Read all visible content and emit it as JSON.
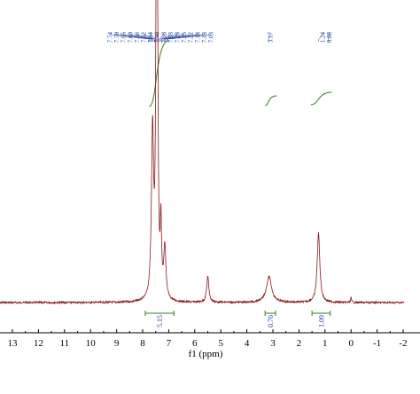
{
  "chart_data": {
    "type": "line",
    "xlabel": "f1 (ppm)",
    "xlim": [
      13.5,
      -2
    ],
    "x_reversed": true,
    "ticks": [
      "13",
      "12",
      "11",
      "10",
      "9",
      "8",
      "7",
      "6",
      "5",
      "4",
      "3",
      "2",
      "1",
      "0",
      "-1",
      "-2"
    ],
    "peak_labels": {
      "aromatic": [
        "7.74",
        "7.70",
        "7.65",
        "7.60",
        "7.56",
        "7.52",
        "7.44",
        "7.40",
        "7.38",
        "7.33",
        "7.28",
        "7.25",
        "7.22",
        "7.18",
        "7.13",
        "7.03"
      ],
      "single": [
        "3.17"
      ],
      "aliphatic": [
        "1.24",
        "0.88"
      ]
    },
    "integrals": [
      {
        "from": 7.9,
        "to": 6.8,
        "label": "5.15"
      },
      {
        "from": 3.3,
        "to": 2.9,
        "label": "0.76"
      },
      {
        "from": 1.5,
        "to": 0.8,
        "label": "1.09"
      }
    ],
    "peaks": [
      {
        "ppm": 7.62,
        "height": 0.66
      },
      {
        "ppm": 7.48,
        "height": 1.0
      },
      {
        "ppm": 7.43,
        "height": 0.97
      },
      {
        "ppm": 7.3,
        "height": 0.28
      },
      {
        "ppm": 7.15,
        "height": 0.2
      },
      {
        "ppm": 5.5,
        "height": 0.1
      },
      {
        "ppm": 3.15,
        "height": 0.1
      },
      {
        "ppm": 1.25,
        "height": 0.27
      },
      {
        "ppm": 0.0,
        "height": 0.02
      }
    ],
    "colors": {
      "spectrum": "#8b1a1a",
      "integral_curve": "#2f7d1a",
      "integral_bar": "#2f7d1a",
      "integral_label": "#1f3f9f",
      "peak_label": "#1f3f9f",
      "axis": "#000000"
    }
  }
}
